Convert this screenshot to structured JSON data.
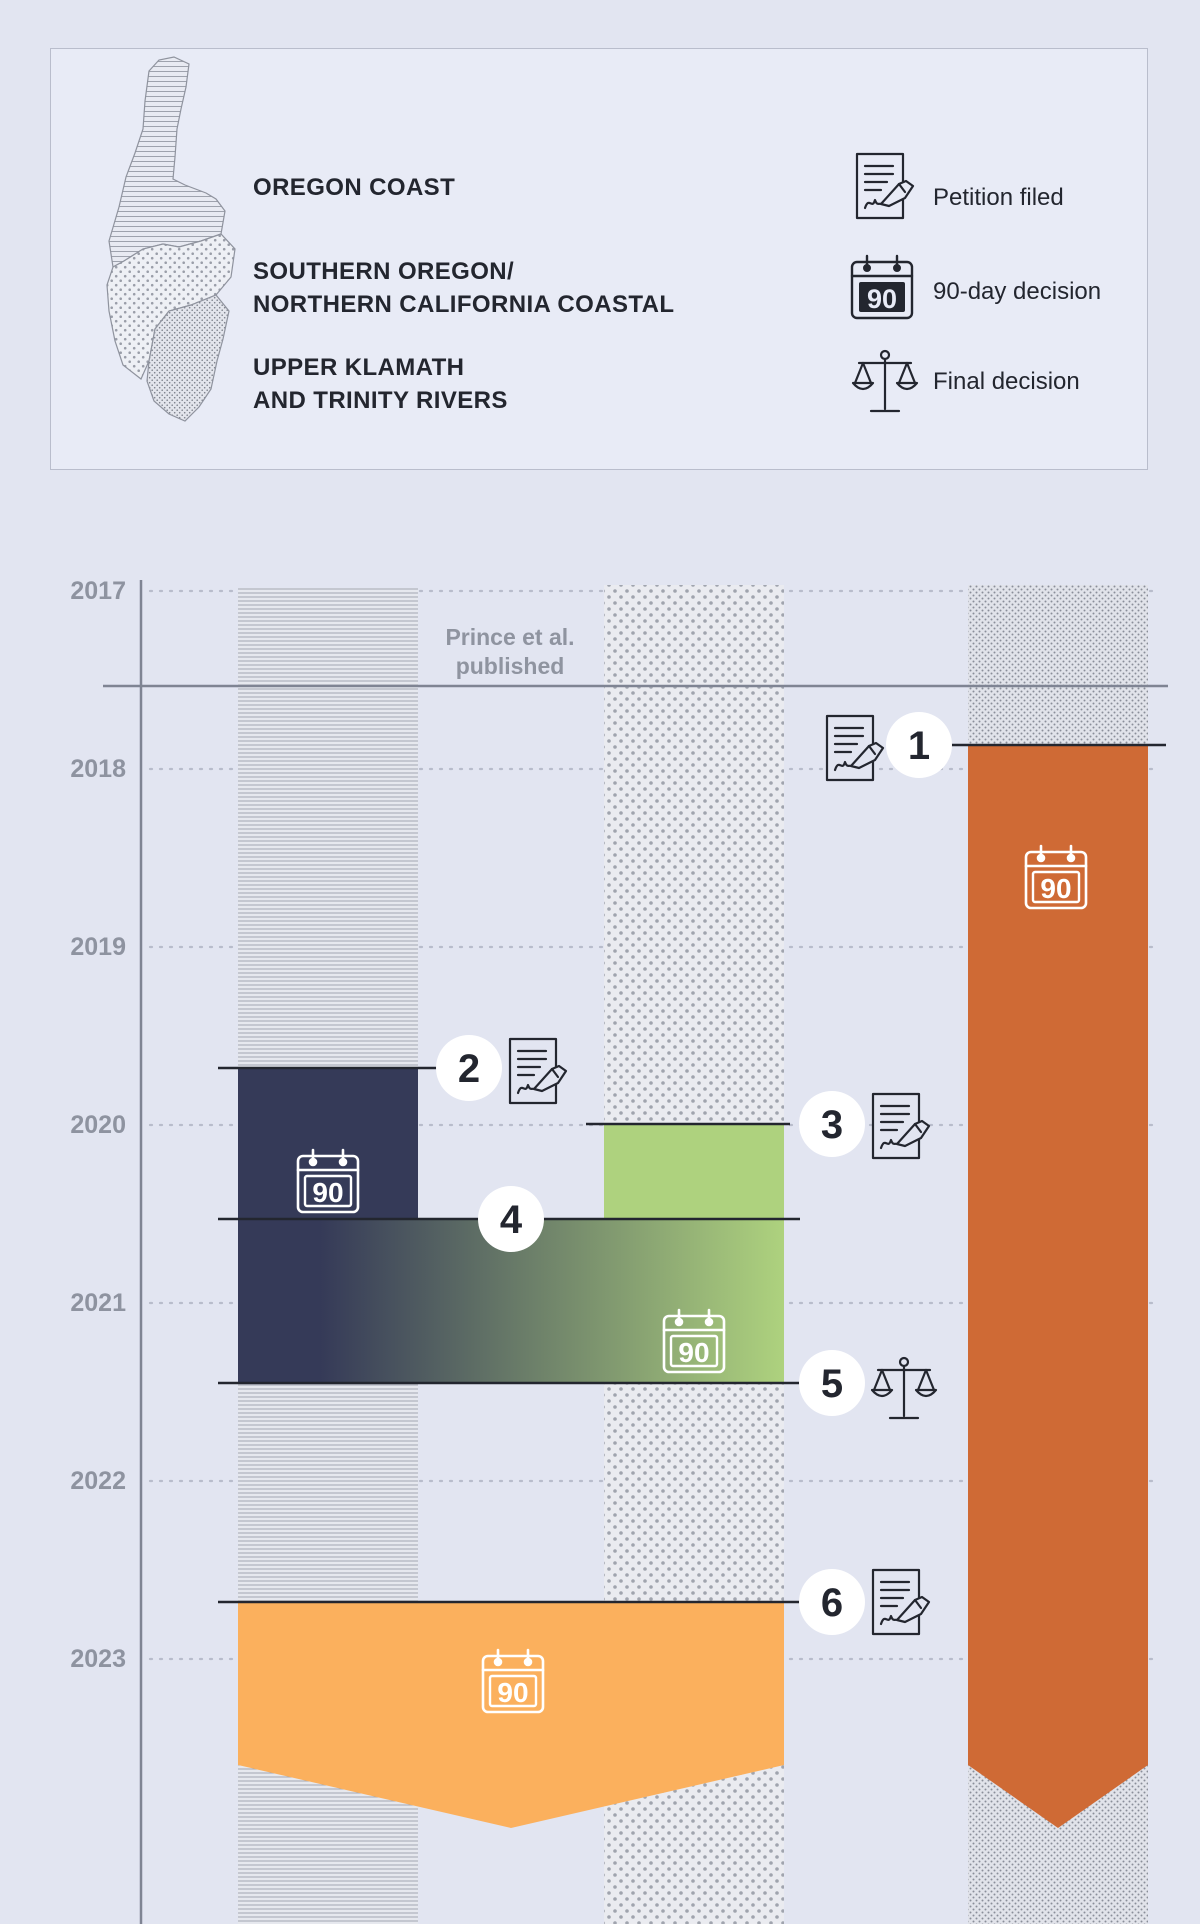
{
  "legend": {
    "regions": [
      {
        "name": "OREGON COAST",
        "pattern": "horizontal-lines"
      },
      {
        "name": "SOUTHERN OREGON/\nNORTHERN CALIFORNIA COASTAL",
        "pattern": "large-dots"
      },
      {
        "name": "UPPER KLAMATH\nAND TRINITY RIVERS",
        "pattern": "small-stipple"
      }
    ],
    "keys": [
      {
        "icon": "petition-document-icon",
        "label": "Petition filed"
      },
      {
        "icon": "calendar-90-icon",
        "label": "90-day decision"
      },
      {
        "icon": "scales-icon",
        "label": "Final decision"
      }
    ]
  },
  "timeline": {
    "years": [
      "2017",
      "2018",
      "2019",
      "2020",
      "2021",
      "2022",
      "2023"
    ],
    "annotation": "Prince et al.\npublished",
    "calendar_number": "90",
    "events": [
      {
        "number": "1",
        "icon": "petition-document-icon"
      },
      {
        "number": "2",
        "icon": "petition-document-icon"
      },
      {
        "number": "3",
        "icon": "petition-document-icon"
      },
      {
        "number": "4",
        "icon": ""
      },
      {
        "number": "5",
        "icon": "scales-icon"
      },
      {
        "number": "6",
        "icon": "petition-document-icon"
      }
    ]
  },
  "colors": {
    "background": "#e2e5f1",
    "navy": "#353a58",
    "green": "#aed27e",
    "orange": "#cf6a35",
    "light_orange": "#fbb05d",
    "axis": "#7f8493"
  }
}
